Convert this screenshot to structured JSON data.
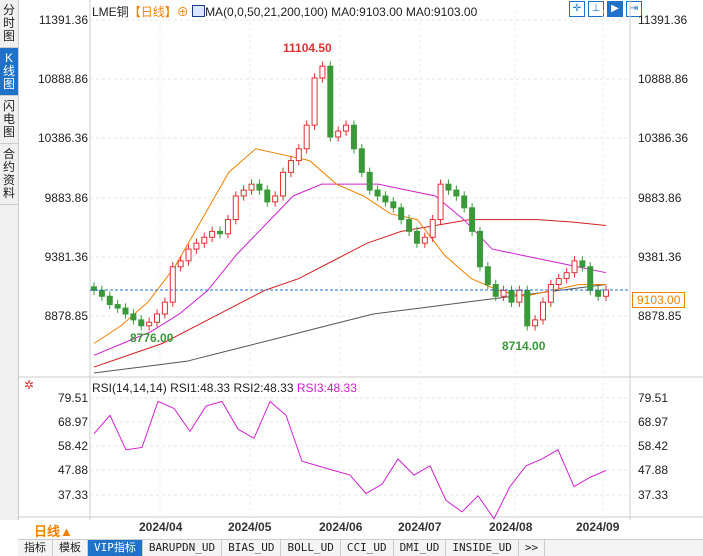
{
  "left_tabs": [
    "分时图",
    "K线图",
    "闪电图",
    "合约资料"
  ],
  "header": {
    "symbol": "LME铜",
    "period": "【日线】",
    "ma_text": "MA(0,0,50,21,200,100)",
    "ma0a": "MA0:9103.00",
    "ma0b": "MA0:9103.00"
  },
  "price_axis": [
    "11391.36",
    "10888.86",
    "10386.36",
    "9883.86",
    "9381.36",
    "8878.85"
  ],
  "annotations": {
    "high": "11104.50",
    "low1": "8776.00",
    "low2": "8714.00",
    "last": "9103.00"
  },
  "rsi": {
    "label": "RSI(14,14,14)",
    "rsi1": "RSI1:48.33",
    "rsi2": "RSI2:48.33",
    "rsi3": "RSI3:48.33",
    "axis": [
      "79.51",
      "68.97",
      "58.42",
      "47.88",
      "37.33"
    ]
  },
  "dates": [
    "2024/04",
    "2024/05",
    "2024/06",
    "2024/07",
    "2024/08",
    "2024/09"
  ],
  "period_button": "日线▲",
  "bottom_tabs": [
    "指标",
    "模板",
    "VIP指标",
    "BARUPDN_UD",
    "BIAS_UD",
    "BOLL_UD",
    "CCI_UD",
    "DMI_UD",
    "INSIDE_UD",
    ">>"
  ],
  "tools": [
    "crosshair-icon",
    "fit-icon",
    "zoom-icon",
    "goto-end-icon"
  ],
  "colors": {
    "up": "#e03030",
    "down": "#3a9a3a",
    "ma21": "#f08000",
    "ma50": "#d020d0",
    "ma100": "#d02020",
    "ma200": "#555555",
    "rsi": "#d020d0"
  },
  "chart_data": {
    "type": "candlestick",
    "closes": [
      9100,
      9050,
      8980,
      8950,
      8900,
      8850,
      8800,
      8830,
      8900,
      9000,
      9300,
      9350,
      9450,
      9500,
      9550,
      9600,
      9580,
      9700,
      9900,
      9950,
      10000,
      9950,
      9850,
      9900,
      10100,
      10200,
      10300,
      10500,
      10900,
      11000,
      10400,
      10450,
      10500,
      10300,
      10100,
      9950,
      9900,
      9850,
      9800,
      9700,
      9600,
      9500,
      9550,
      9700,
      10000,
      9950,
      9900,
      9800,
      9600,
      9300,
      9150,
      9050,
      9100,
      9000,
      9100,
      8800,
      8850,
      9000,
      9150,
      9200,
      9250,
      9350,
      9300,
      9100,
      9050,
      9103
    ],
    "ma21": [
      8650,
      8800,
      9000,
      9300,
      9700,
      10100,
      10300,
      10250,
      10200,
      10000,
      9900,
      9750,
      9700,
      9400,
      9200,
      9100,
      9050,
      9100,
      9150,
      9150
    ],
    "ma50": [
      8550,
      8650,
      8750,
      8900,
      9100,
      9400,
      9650,
      9900,
      10000,
      10000,
      10000,
      9950,
      9900,
      9700,
      9450,
      9400,
      9350,
      9300,
      9250
    ],
    "ma100": [
      8450,
      8550,
      8650,
      8800,
      8950,
      9100,
      9200,
      9350,
      9500,
      9600,
      9650,
      9700,
      9700,
      9700,
      9680,
      9650
    ],
    "ma200": [
      8400,
      8450,
      8500,
      8600,
      8700,
      8800,
      8900,
      8950,
      9000,
      9050,
      9100,
      9150
    ],
    "rsi": [
      64,
      72,
      57,
      58,
      78,
      75,
      65,
      76,
      78,
      66,
      62,
      78,
      72,
      52,
      50,
      48,
      46,
      38,
      42,
      53,
      46,
      50,
      35,
      30,
      37,
      27,
      41,
      50,
      53,
      57,
      41,
      45,
      48
    ],
    "yrange": [
      8600,
      11391.36
    ],
    "rsi_range": [
      37.33,
      79.51
    ]
  }
}
